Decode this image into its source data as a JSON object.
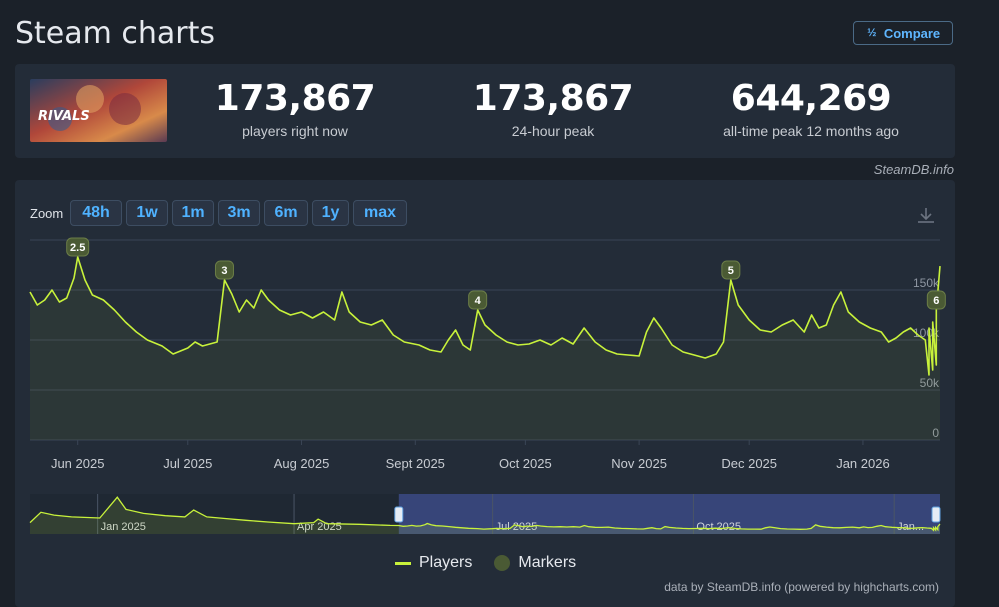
{
  "header": {
    "title": "Steam charts",
    "compare_label": "Compare",
    "compare_icon": "fraction-icon"
  },
  "stats": [
    {
      "value": "173,867",
      "label": "players right now"
    },
    {
      "value": "173,867",
      "label": "24-hour peak"
    },
    {
      "value": "644,269",
      "label": "all-time peak 12 months ago"
    }
  ],
  "game_cover_text": "RIVALS",
  "credit": "SteamDB.info",
  "zoom": {
    "label": "Zoom",
    "buttons": [
      "48h",
      "1w",
      "1m",
      "3m",
      "6m",
      "1y",
      "max"
    ]
  },
  "legend": {
    "players": "Players",
    "markers": "Markers"
  },
  "powered_by": "data by SteamDB.info (powered by highcharts.com)",
  "colors": {
    "series": "#c8f23b",
    "marker": "#4a5a34",
    "accent": "#4fb2ff",
    "navigator_selection": "#3c4a86"
  },
  "chart_data": {
    "type": "line",
    "x_range": [
      "2025-05-19",
      "2026-01-22"
    ],
    "ylim": [
      0,
      200000
    ],
    "y_ticks": [
      {
        "value": 0,
        "label": "0"
      },
      {
        "value": 50000,
        "label": "50k"
      },
      {
        "value": 100000,
        "label": "100k"
      },
      {
        "value": 150000,
        "label": "150k"
      }
    ],
    "x_ticks": [
      {
        "date": "2025-06-01",
        "label": "Jun 2025"
      },
      {
        "date": "2025-07-01",
        "label": "Jul 2025"
      },
      {
        "date": "2025-08-01",
        "label": "Aug 2025"
      },
      {
        "date": "2025-09-01",
        "label": "Sept 2025"
      },
      {
        "date": "2025-10-01",
        "label": "Oct 2025"
      },
      {
        "date": "2025-11-01",
        "label": "Nov 2025"
      },
      {
        "date": "2025-12-01",
        "label": "Dec 2025"
      },
      {
        "date": "2026-01-01",
        "label": "Jan 2026"
      }
    ],
    "series": [
      {
        "name": "Players",
        "points": [
          [
            "2025-05-19",
            148000
          ],
          [
            "2025-05-21",
            135000
          ],
          [
            "2025-05-23",
            140000
          ],
          [
            "2025-05-25",
            150000
          ],
          [
            "2025-05-27",
            138000
          ],
          [
            "2025-05-29",
            142000
          ],
          [
            "2025-05-31",
            162000
          ],
          [
            "2025-06-01",
            183000
          ],
          [
            "2025-06-03",
            160000
          ],
          [
            "2025-06-05",
            145000
          ],
          [
            "2025-06-08",
            140000
          ],
          [
            "2025-06-11",
            130000
          ],
          [
            "2025-06-14",
            118000
          ],
          [
            "2025-06-17",
            108000
          ],
          [
            "2025-06-20",
            100000
          ],
          [
            "2025-06-24",
            94000
          ],
          [
            "2025-06-27",
            86000
          ],
          [
            "2025-07-01",
            92000
          ],
          [
            "2025-07-03",
            98000
          ],
          [
            "2025-07-05",
            94000
          ],
          [
            "2025-07-07",
            96000
          ],
          [
            "2025-07-09",
            98000
          ],
          [
            "2025-07-11",
            160000
          ],
          [
            "2025-07-13",
            146000
          ],
          [
            "2025-07-15",
            128000
          ],
          [
            "2025-07-17",
            140000
          ],
          [
            "2025-07-19",
            132000
          ],
          [
            "2025-07-21",
            150000
          ],
          [
            "2025-07-23",
            140000
          ],
          [
            "2025-07-26",
            130000
          ],
          [
            "2025-07-29",
            125000
          ],
          [
            "2025-08-01",
            128000
          ],
          [
            "2025-08-04",
            122000
          ],
          [
            "2025-08-07",
            128000
          ],
          [
            "2025-08-10",
            120000
          ],
          [
            "2025-08-12",
            148000
          ],
          [
            "2025-08-14",
            128000
          ],
          [
            "2025-08-17",
            118000
          ],
          [
            "2025-08-20",
            115000
          ],
          [
            "2025-08-23",
            120000
          ],
          [
            "2025-08-26",
            105000
          ],
          [
            "2025-08-29",
            98000
          ],
          [
            "2025-09-02",
            95000
          ],
          [
            "2025-09-05",
            90000
          ],
          [
            "2025-09-08",
            88000
          ],
          [
            "2025-09-10",
            100000
          ],
          [
            "2025-09-12",
            110000
          ],
          [
            "2025-09-14",
            95000
          ],
          [
            "2025-09-16",
            90000
          ],
          [
            "2025-09-18",
            130000
          ],
          [
            "2025-09-20",
            115000
          ],
          [
            "2025-09-23",
            105000
          ],
          [
            "2025-09-26",
            98000
          ],
          [
            "2025-09-29",
            95000
          ],
          [
            "2025-10-02",
            96000
          ],
          [
            "2025-10-05",
            100000
          ],
          [
            "2025-10-08",
            95000
          ],
          [
            "2025-10-11",
            102000
          ],
          [
            "2025-10-14",
            96000
          ],
          [
            "2025-10-17",
            112000
          ],
          [
            "2025-10-20",
            98000
          ],
          [
            "2025-10-23",
            90000
          ],
          [
            "2025-10-26",
            86000
          ],
          [
            "2025-10-29",
            85000
          ],
          [
            "2025-11-01",
            84000
          ],
          [
            "2025-11-03",
            108000
          ],
          [
            "2025-11-05",
            122000
          ],
          [
            "2025-11-07",
            112000
          ],
          [
            "2025-11-10",
            95000
          ],
          [
            "2025-11-13",
            88000
          ],
          [
            "2025-11-16",
            85000
          ],
          [
            "2025-11-19",
            82000
          ],
          [
            "2025-11-22",
            86000
          ],
          [
            "2025-11-24",
            98000
          ],
          [
            "2025-11-26",
            160000
          ],
          [
            "2025-11-28",
            135000
          ],
          [
            "2025-12-01",
            120000
          ],
          [
            "2025-12-04",
            110000
          ],
          [
            "2025-12-07",
            108000
          ],
          [
            "2025-12-10",
            115000
          ],
          [
            "2025-12-13",
            120000
          ],
          [
            "2025-12-16",
            108000
          ],
          [
            "2025-12-18",
            125000
          ],
          [
            "2025-12-20",
            112000
          ],
          [
            "2025-12-22",
            115000
          ],
          [
            "2025-12-24",
            135000
          ],
          [
            "2025-12-26",
            148000
          ],
          [
            "2025-12-28",
            128000
          ],
          [
            "2025-12-31",
            118000
          ],
          [
            "2026-01-03",
            112000
          ],
          [
            "2026-01-06",
            108000
          ],
          [
            "2026-01-08",
            98000
          ],
          [
            "2026-01-10",
            102000
          ],
          [
            "2026-01-12",
            108000
          ],
          [
            "2026-01-14",
            112000
          ],
          [
            "2026-01-16",
            105000
          ],
          [
            "2026-01-18",
            100000
          ],
          [
            "2026-01-19",
            65000
          ],
          [
            "2026-01-19",
            112000
          ],
          [
            "2026-01-20",
            70000
          ],
          [
            "2026-01-20",
            118000
          ],
          [
            "2026-01-21",
            75000
          ],
          [
            "2026-01-21",
            130000
          ],
          [
            "2026-01-22",
            173867
          ]
        ]
      }
    ],
    "markers": [
      {
        "label": "2.5",
        "date": "2025-06-01",
        "value": 183000
      },
      {
        "label": "3",
        "date": "2025-07-11",
        "value": 160000
      },
      {
        "label": "4",
        "date": "2025-09-18",
        "value": 130000
      },
      {
        "label": "5",
        "date": "2025-11-26",
        "value": 160000
      },
      {
        "label": "6",
        "date": "2026-01-21",
        "value": 130000
      }
    ],
    "navigator": {
      "tick_labels": [
        "Jan 2025",
        "Apr 2025",
        "Jul 2025",
        "Oct 2025",
        "Jan..."
      ],
      "selection_range": [
        "2025-05-19",
        "2026-01-22"
      ]
    }
  }
}
